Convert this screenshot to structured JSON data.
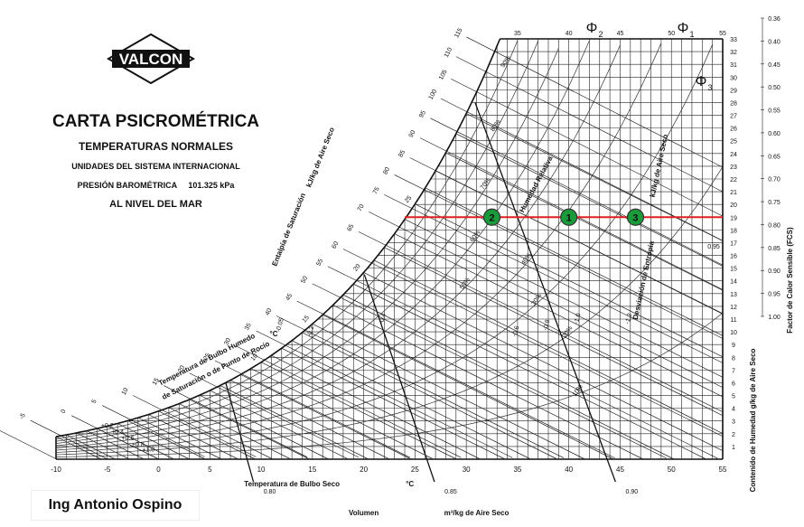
{
  "header": {
    "brand": "VALCON",
    "title": "CARTA PSICROMÉTRICA",
    "subtitle": "TEMPERATURAS NORMALES",
    "units": "UNIDADES DEL SISTEMA INTERNACIONAL",
    "pressure_label": "PRESIÓN BAROMÉTRICA",
    "pressure_value": "101.325 kPa",
    "altitude": "AL NIVEL DEL MAR"
  },
  "author": "Ing Antonio Ospino",
  "chart_data": {
    "type": "scatter",
    "xlabel": "Temperatura de Bulbo Seco",
    "xunit": "°C",
    "ylabel": "Contenido de Humedad g/kg de Aire Seco",
    "volume_label": "Volumen",
    "volume_unit": "m³/kg de Aire Seco",
    "enthalpy_label": "Entalpía de Saturación",
    "enthalpy_unit": "kJ/kg de Aire Seco",
    "wetbulb_label_1": "Temperatura de Bulbo Humedo",
    "wetbulb_label_2": "de Saturación o de Punto de Rocío",
    "wetbulb_unit": "°C",
    "rh_label": "Humedad Relativa",
    "deviation_label": "Desviación de Entropía",
    "deviation_unit": "kJ/kg de Aire Seco",
    "shf_label": "Factor de Calor Sensible (FCS)",
    "xlim": [
      -10,
      55
    ],
    "ylim": [
      0,
      33
    ],
    "x_ticks": [
      -10,
      -5,
      0,
      5,
      10,
      15,
      20,
      25,
      30,
      35,
      40,
      45,
      50,
      55
    ],
    "top_ticks": [
      35,
      40,
      45,
      50,
      55
    ],
    "y_ticks": [
      1,
      2,
      3,
      4,
      5,
      6,
      7,
      8,
      9,
      10,
      11,
      12,
      13,
      14,
      15,
      16,
      17,
      18,
      19,
      20,
      21,
      22,
      23,
      24,
      25,
      26,
      27,
      28,
      29,
      30,
      31,
      32,
      33
    ],
    "rh_curves": [
      10,
      20,
      30,
      40,
      50,
      60,
      70,
      80,
      90
    ],
    "rh_labels": [
      "10%",
      "20%",
      "30%",
      "40%",
      "50%",
      "60%",
      "70%",
      "80%",
      "90%"
    ],
    "volume_lines": [
      0.8,
      0.85,
      0.9
    ],
    "volume_labels": [
      "0.80",
      "0.85",
      "0.90"
    ],
    "enthalpy_values": [
      -10,
      -5,
      0,
      5,
      10,
      15,
      20,
      25,
      30,
      35,
      40,
      45,
      50,
      55,
      60,
      65,
      70,
      75,
      80,
      85,
      90,
      95,
      100,
      105,
      110,
      115
    ],
    "wetbulb_values": [
      10,
      15,
      20,
      25
    ],
    "shf_values": [
      "0.36",
      "0.40",
      "0.45",
      "0.50",
      "0.55",
      "0.60",
      "0.65",
      "0.70",
      "0.75",
      "0.80",
      "0.85",
      "0.90",
      "0.95",
      "1.00"
    ],
    "shf_inner": [
      "0.95"
    ],
    "deviation_values": [
      "-0.4",
      "-0.6",
      "-0.8",
      "-1.0",
      "-1.2",
      "+0.2",
      "+0.4",
      "+0.6",
      "+0.8",
      "+1.0",
      "-0.2",
      "-0.05"
    ],
    "process_line": {
      "w": 19,
      "x_start": 24,
      "x_end": 55,
      "color": "#e02020"
    },
    "points": [
      {
        "label": "1",
        "x": 40,
        "w": 19
      },
      {
        "label": "2",
        "x": 32.5,
        "w": 19
      },
      {
        "label": "3",
        "x": 46.5,
        "w": 19
      }
    ],
    "phi_labels": [
      {
        "text": "Φ",
        "sub": "2",
        "x": 42
      },
      {
        "text": "Φ",
        "sub": "1",
        "x": 52
      },
      {
        "text": "Φ",
        "sub": "3",
        "x": 53
      }
    ],
    "point_color": "#1a9a3a",
    "phi_color": "#6a1b9a"
  }
}
